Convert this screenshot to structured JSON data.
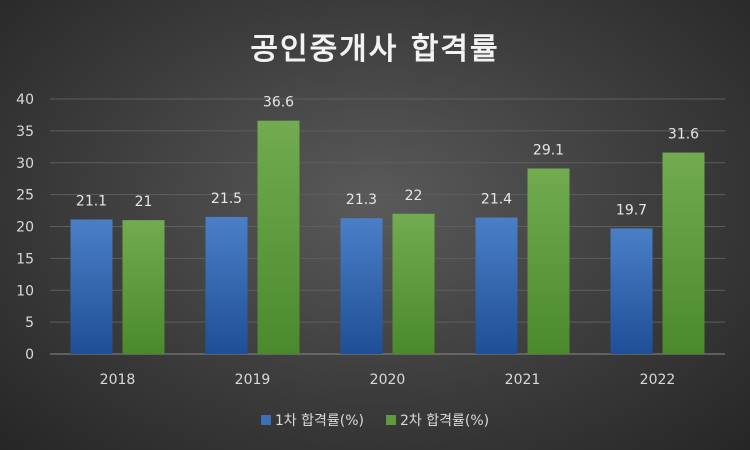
{
  "chart_data": {
    "type": "bar",
    "title": "공인중개사 합격률",
    "categories": [
      "2018",
      "2019",
      "2020",
      "2021",
      "2022"
    ],
    "series": [
      {
        "name": "1차 합격률(%)",
        "values": [
          21.1,
          21.5,
          21.3,
          21.4,
          19.7
        ],
        "color": "#3d6fb5"
      },
      {
        "name": "2차 합격률(%)",
        "values": [
          21,
          36.6,
          22,
          29.1,
          31.6
        ],
        "color": "#5e9a3e"
      }
    ],
    "ylim": [
      0,
      40
    ],
    "yticks": [
      0,
      5,
      10,
      15,
      20,
      25,
      30,
      35,
      40
    ],
    "grid": true,
    "legend_position": "bottom"
  }
}
